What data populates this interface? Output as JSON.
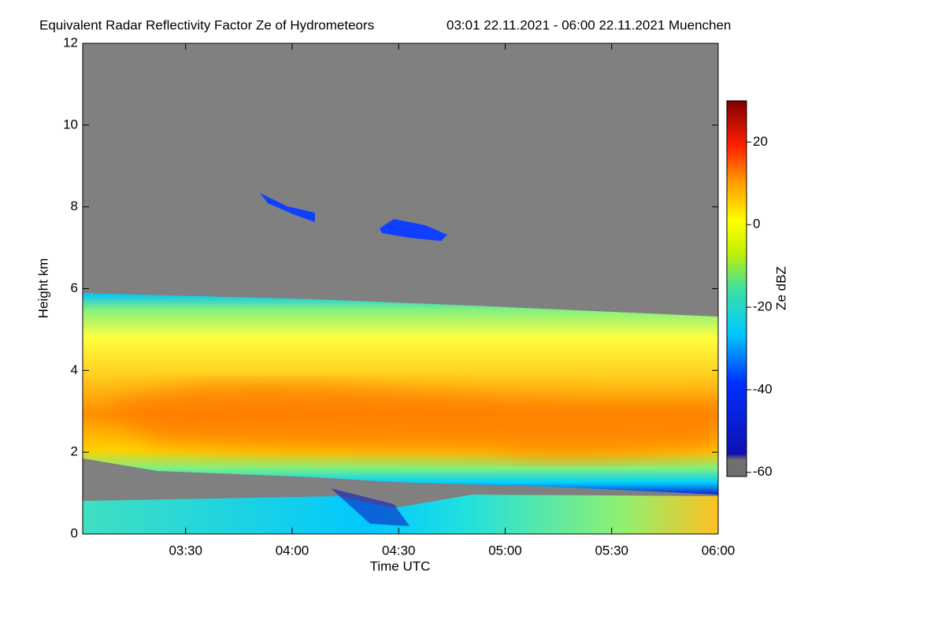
{
  "chart_data": {
    "type": "heatmap",
    "title": "Equivalent Radar Reflectivity Factor Ze of Hydrometeors",
    "subtitle": "03:01 22.11.2021 - 06:00 22.11.2021 Muenchen",
    "x_label": "Time UTC",
    "y_label": "Height km",
    "xlim": [
      181,
      360
    ],
    "xticks": [
      {
        "value": 210,
        "label": "03:30"
      },
      {
        "value": 240,
        "label": "04:00"
      },
      {
        "value": 270,
        "label": "04:30"
      },
      {
        "value": 300,
        "label": "05:00"
      },
      {
        "value": 330,
        "label": "05:30"
      },
      {
        "value": 360,
        "label": "06:00"
      }
    ],
    "ylim": [
      0,
      12
    ],
    "yticks": [
      0,
      2,
      4,
      6,
      8,
      10,
      12
    ],
    "colorbar": {
      "label": "Ze dBZ",
      "lim": [
        -61,
        30
      ],
      "ticks": [
        -60,
        -40,
        -20,
        0,
        20
      ]
    }
  }
}
